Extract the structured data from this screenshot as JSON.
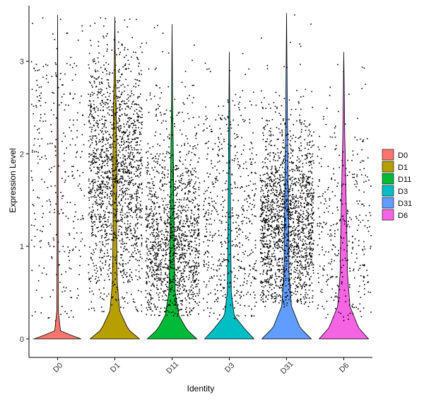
{
  "chart_data": {
    "type": "violin",
    "xlabel": "Identity",
    "ylabel": "Expression Level",
    "categories": [
      "D0",
      "D1",
      "D11",
      "D3",
      "D31",
      "D6"
    ],
    "colors": [
      "#F8766D",
      "#B79F00",
      "#00BA38",
      "#00BFC4",
      "#619CFF",
      "#F564E3"
    ],
    "ylim": [
      -0.2,
      3.6
    ],
    "yticks": [
      0,
      1,
      2,
      3
    ],
    "legend_position": "right",
    "grid": false,
    "series": [
      {
        "name": "D0",
        "max": 3.5,
        "point_count": 1200,
        "point_band": [
          0.2,
          3.0
        ],
        "point_density": "uniform"
      },
      {
        "name": "D1",
        "max": 3.48,
        "point_count": 6500,
        "point_band": [
          0.3,
          3.3
        ],
        "point_density": "dense-center-1.8"
      },
      {
        "name": "D11",
        "max": 3.4,
        "point_count": 5500,
        "point_band": [
          0.25,
          2.8
        ],
        "point_density": "dense-center-1.0"
      },
      {
        "name": "D3",
        "max": 3.1,
        "point_count": 2200,
        "point_band": [
          0.2,
          2.6
        ],
        "point_density": "sparse-center-1.0"
      },
      {
        "name": "D31",
        "max": 3.52,
        "point_count": 7000,
        "point_band": [
          0.35,
          2.7
        ],
        "point_density": "dense-center-1.2"
      },
      {
        "name": "D6",
        "max": 3.1,
        "point_count": 1400,
        "point_band": [
          0.2,
          2.4
        ],
        "point_density": "sparse-center-1.0"
      }
    ]
  }
}
